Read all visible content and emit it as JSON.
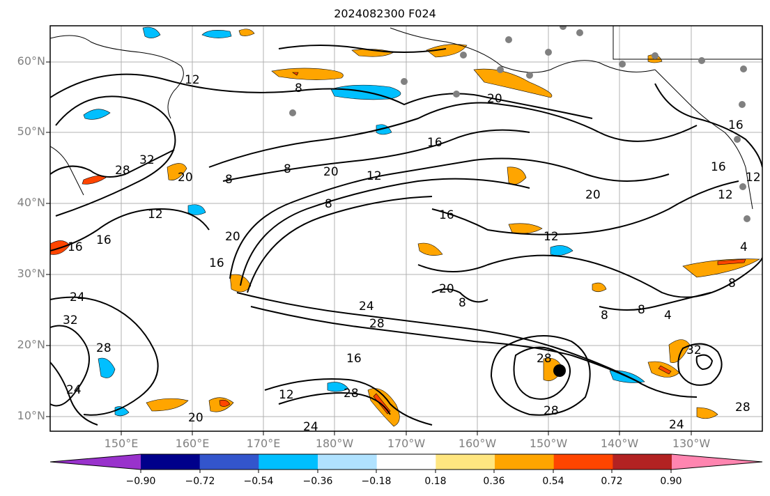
{
  "title": "2024082300 F024",
  "lat_labels": [
    "60°N",
    "50°N",
    "40°N",
    "30°N",
    "20°N",
    "10°N"
  ],
  "lon_labels": [
    "150°E",
    "160°E",
    "170°E",
    "180°W",
    "170°W",
    "160°W",
    "150°W",
    "140°W",
    "130°W"
  ],
  "contour_labels": [
    "12",
    "8",
    "20",
    "16",
    "8",
    "20",
    "12",
    "8",
    "16",
    "20",
    "12",
    "28",
    "32",
    "16",
    "16",
    "24",
    "32",
    "28",
    "24",
    "20",
    "8",
    "12",
    "16",
    "20",
    "24",
    "28",
    "8",
    "20",
    "8",
    "4",
    "8",
    "16",
    "12",
    "4",
    "8",
    "28",
    "28",
    "24",
    "12",
    "28",
    "32",
    "28",
    "16",
    "12",
    "20",
    "16",
    "24"
  ],
  "colorbar": {
    "tick_labels": [
      "−0.90",
      "−0.72",
      "−0.54",
      "−0.36",
      "−0.18",
      "0.18",
      "0.36",
      "0.54",
      "0.72",
      "0.90"
    ],
    "colors": [
      "#9932cc",
      "#00008b",
      "#3355cc",
      "#00bfff",
      "#b0e2ff",
      "#ffffff",
      "#ffe680",
      "#ffa500",
      "#ff4500",
      "#b22222",
      "#ff85b0"
    ]
  },
  "colors": {
    "coast": "#000000",
    "grid": "#b0b0b0",
    "station": "#808080",
    "storm_center": "#000000",
    "positive_shade": "#ffa500",
    "positive_strong": "#ff4500",
    "negative_shade": "#00bfff",
    "negative_strong": "#b0e2ff"
  }
}
